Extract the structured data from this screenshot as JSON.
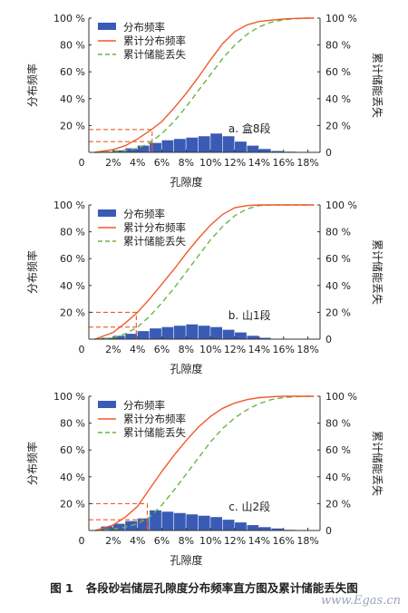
{
  "caption": {
    "figure_number": "图 1",
    "text": "各段砂岩储层孔隙度分布频率直方图及累计储能丢失图"
  },
  "watermark": "www.Egas.cn",
  "legend": {
    "histogram": "分布频率",
    "cumulative": "累计分布频率",
    "energy_loss": "累计储能丢失"
  },
  "colors": {
    "histogram": "#3a5bb5",
    "cumulative": "#f05a28",
    "energy_loss": "#6ab445",
    "guide": "#f05a28"
  },
  "chart_data": [
    {
      "type": "bar",
      "annotation": "a. 盒8段",
      "xlabel": "孔隙度",
      "ylabel_left": "分布频率",
      "ylabel_right": "累计储能丢失",
      "x_ticks": [
        "2%",
        "4%",
        "6%",
        "8%",
        "10%",
        "12%",
        "14%",
        "16%",
        "18%"
      ],
      "x_tick_values": [
        2,
        4,
        6,
        8,
        10,
        12,
        14,
        16,
        18
      ],
      "y_ticks_left": [
        "20 %",
        "40 %",
        "60 %",
        "80 %",
        "100 %"
      ],
      "y_ticks_right": [
        "0",
        "20 %",
        "40 %",
        "60 %",
        "80 %",
        "100 %"
      ],
      "y_tick_values_left": [
        20,
        40,
        60,
        80,
        100
      ],
      "y_tick_values_right": [
        0,
        20,
        40,
        60,
        80,
        100
      ],
      "xlim": [
        0,
        19
      ],
      "ylim": [
        0,
        100
      ],
      "bin_width": 1,
      "histogram": {
        "bin_starts": [
          1,
          2,
          3,
          4,
          5,
          6,
          7,
          8,
          9,
          10,
          11,
          12,
          13,
          14,
          15,
          16
        ],
        "values": [
          0.5,
          1.5,
          3,
          5,
          7,
          9,
          10,
          11,
          12,
          14,
          12,
          8,
          5,
          2.5,
          1,
          0.5
        ]
      },
      "cumulative": {
        "x": [
          0.5,
          2,
          3,
          4,
          5,
          6,
          7,
          8,
          9,
          10,
          11,
          12,
          13,
          14,
          15,
          16,
          17,
          18,
          18.5
        ],
        "y": [
          0,
          2,
          5,
          10,
          16,
          23,
          33,
          44,
          56,
          69,
          81,
          90,
          95,
          97.5,
          98.5,
          99.3,
          99.8,
          100,
          100
        ]
      },
      "energy_loss": {
        "x": [
          0.5,
          2,
          3,
          4,
          5,
          6,
          7,
          8,
          9,
          10,
          11,
          12,
          13,
          14,
          15,
          16,
          17,
          18,
          18.5
        ],
        "y": [
          0,
          0.5,
          1.5,
          3,
          7,
          14,
          23,
          34,
          46,
          58,
          70,
          80,
          88,
          93.5,
          97,
          98.8,
          99.6,
          100,
          100
        ]
      },
      "guides": [
        {
          "x": 5.2,
          "y": 17
        },
        {
          "x": 5.2,
          "y": 8
        }
      ]
    },
    {
      "type": "bar",
      "annotation": "b. 山1段",
      "xlabel": "孔隙度",
      "ylabel_left": "分布频率",
      "ylabel_right": "累计储能丢失",
      "x_ticks": [
        "2%",
        "4%",
        "6%",
        "8%",
        "10%",
        "12%",
        "14%",
        "16%",
        "18%"
      ],
      "x_tick_values": [
        2,
        4,
        6,
        8,
        10,
        12,
        14,
        16,
        18
      ],
      "y_ticks_left": [
        "20 %",
        "40 %",
        "60 %",
        "80 %",
        "100 %"
      ],
      "y_ticks_right": [
        "0",
        "20 %",
        "40 %",
        "60 %",
        "80 %",
        "100 %"
      ],
      "y_tick_values_left": [
        20,
        40,
        60,
        80,
        100
      ],
      "y_tick_values_right": [
        0,
        20,
        40,
        60,
        80,
        100
      ],
      "xlim": [
        0,
        19
      ],
      "ylim": [
        0,
        100
      ],
      "bin_width": 1,
      "histogram": {
        "bin_starts": [
          1,
          2,
          3,
          4,
          5,
          6,
          7,
          8,
          9,
          10,
          11,
          12,
          13,
          14
        ],
        "values": [
          1,
          2.5,
          4,
          6,
          8,
          9,
          10,
          11,
          10,
          9,
          7,
          5,
          2.5,
          1
        ]
      },
      "cumulative": {
        "x": [
          0.5,
          2,
          3,
          4,
          5,
          6,
          7,
          8,
          9,
          10,
          11,
          12,
          13,
          14,
          15,
          16,
          17,
          18,
          18.5
        ],
        "y": [
          0,
          5,
          12,
          20,
          30,
          41,
          52,
          64,
          75,
          85,
          93,
          98,
          99.5,
          100,
          100,
          100,
          100,
          100,
          100
        ]
      },
      "energy_loss": {
        "x": [
          0.5,
          2,
          3,
          4,
          5,
          6,
          7,
          8,
          9,
          10,
          11,
          12,
          13,
          14,
          15,
          16,
          17,
          18,
          18.5
        ],
        "y": [
          0,
          1,
          4,
          9,
          17,
          27,
          38,
          50,
          62,
          74,
          84,
          92,
          97,
          99.5,
          100,
          100,
          100,
          100,
          100
        ]
      },
      "guides": [
        {
          "x": 3.9,
          "y": 20
        },
        {
          "x": 3.9,
          "y": 9
        }
      ]
    },
    {
      "type": "bar",
      "annotation": "c. 山2段",
      "xlabel": "孔隙度",
      "ylabel_left": "分布频率",
      "ylabel_right": "累计储能丢失",
      "x_ticks": [
        "2%",
        "4%",
        "6%",
        "8%",
        "10%",
        "12%",
        "14%",
        "16%",
        "18%"
      ],
      "x_tick_values": [
        2,
        4,
        6,
        8,
        10,
        12,
        14,
        16,
        18
      ],
      "y_ticks_left": [
        "20 %",
        "40 %",
        "60 %",
        "80 %",
        "100 %"
      ],
      "y_ticks_right": [
        "0",
        "20 %",
        "40 %",
        "60 %",
        "80 %",
        "100 %"
      ],
      "y_tick_values_left": [
        20,
        40,
        60,
        80,
        100
      ],
      "y_tick_values_right": [
        0,
        20,
        40,
        60,
        80,
        100
      ],
      "xlim": [
        0,
        19
      ],
      "ylim": [
        0,
        100
      ],
      "bin_width": 1,
      "histogram": {
        "bin_starts": [
          1,
          2,
          3,
          4,
          5,
          6,
          7,
          8,
          9,
          10,
          11,
          12,
          13,
          14,
          15,
          16
        ],
        "values": [
          3,
          5,
          7,
          9,
          15,
          14,
          13,
          12,
          11,
          10,
          8,
          6,
          4,
          2.5,
          1.5,
          0.5
        ]
      },
      "cumulative": {
        "x": [
          0.5,
          2,
          3,
          4,
          5,
          6,
          7,
          8,
          9,
          10,
          11,
          12,
          13,
          14,
          15,
          16,
          17,
          18,
          18.5
        ],
        "y": [
          0,
          4,
          10,
          18,
          31,
          44,
          56,
          67,
          77,
          85,
          91,
          95,
          97.5,
          99,
          99.6,
          100,
          100,
          100,
          100
        ]
      },
      "energy_loss": {
        "x": [
          0.5,
          2,
          3,
          4,
          5,
          6,
          7,
          8,
          9,
          10,
          11,
          12,
          13,
          14,
          15,
          16,
          17,
          18,
          18.5
        ],
        "y": [
          0,
          1,
          2.5,
          5,
          10,
          19,
          30,
          42,
          54,
          66,
          76,
          84,
          90,
          94.5,
          97.5,
          99,
          99.7,
          100,
          100
        ]
      },
      "guides": [
        {
          "x": 4.8,
          "y": 20
        },
        {
          "x": 4.8,
          "y": 8
        }
      ]
    }
  ]
}
